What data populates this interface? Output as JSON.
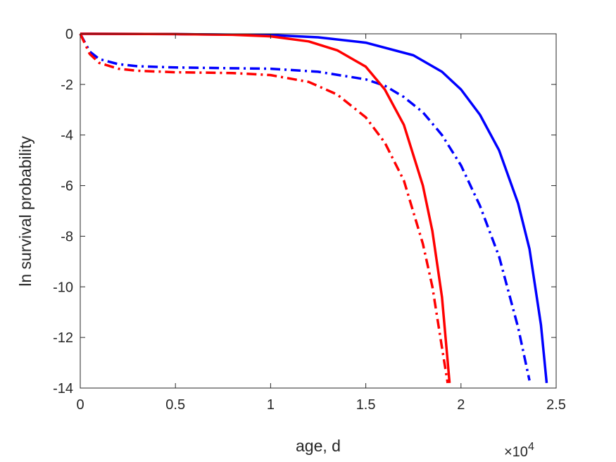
{
  "chart_data": {
    "type": "line",
    "title": "",
    "xlabel": "age, d",
    "ylabel": "ln survival probability",
    "x_exponent_label": {
      "base": "×10",
      "exponent": "4"
    },
    "xlim": [
      0,
      2.5
    ],
    "ylim": [
      -14,
      0
    ],
    "x_scale_factor": 10000,
    "xticks": [
      0,
      0.5,
      1,
      1.5,
      2,
      2.5
    ],
    "xtick_labels": [
      "0",
      "0.5",
      "1",
      "1.5",
      "2",
      "2.5"
    ],
    "yticks": [
      0,
      -2,
      -4,
      -6,
      -8,
      -10,
      -12,
      -14
    ],
    "ytick_labels": [
      "0",
      "-2",
      "-4",
      "-6",
      "-8",
      "-10",
      "-12",
      "-14"
    ],
    "grid": false,
    "legend": false,
    "series": [
      {
        "color": "#0000ff",
        "style": "solid",
        "x": [
          0,
          0.5,
          1.0,
          1.25,
          1.5,
          1.75,
          1.9,
          2.0,
          2.1,
          2.2,
          2.3,
          2.36,
          2.42,
          2.45
        ],
        "y": [
          0,
          -0.01,
          -0.05,
          -0.14,
          -0.35,
          -0.85,
          -1.5,
          -2.2,
          -3.2,
          -4.6,
          -6.7,
          -8.5,
          -11.5,
          -13.8
        ]
      },
      {
        "color": "#0000ff",
        "style": "dashdot",
        "x": [
          0,
          0.05,
          0.1,
          0.2,
          0.3,
          0.5,
          1.0,
          1.25,
          1.5,
          1.6,
          1.7,
          1.8,
          1.9,
          2.0,
          2.1,
          2.2,
          2.3,
          2.36
        ],
        "y": [
          0,
          -0.7,
          -1.0,
          -1.2,
          -1.28,
          -1.33,
          -1.38,
          -1.5,
          -1.8,
          -2.05,
          -2.5,
          -3.1,
          -4.0,
          -5.2,
          -6.8,
          -8.8,
          -11.6,
          -13.7
        ]
      },
      {
        "color": "#ff0000",
        "style": "solid",
        "x": [
          0,
          0.5,
          0.8,
          1.0,
          1.2,
          1.35,
          1.5,
          1.6,
          1.7,
          1.8,
          1.85,
          1.9,
          1.94
        ],
        "y": [
          0,
          -0.01,
          -0.04,
          -0.1,
          -0.3,
          -0.65,
          -1.3,
          -2.2,
          -3.6,
          -6.0,
          -7.8,
          -10.4,
          -13.8
        ]
      },
      {
        "color": "#ff0000",
        "style": "dashdot",
        "x": [
          0,
          0.05,
          0.1,
          0.2,
          0.3,
          0.5,
          0.8,
          1.0,
          1.2,
          1.35,
          1.5,
          1.6,
          1.7,
          1.8,
          1.85,
          1.9,
          1.93
        ],
        "y": [
          0,
          -0.8,
          -1.15,
          -1.38,
          -1.46,
          -1.52,
          -1.55,
          -1.63,
          -1.9,
          -2.4,
          -3.3,
          -4.3,
          -5.8,
          -8.3,
          -10.0,
          -12.4,
          -13.8
        ]
      }
    ]
  }
}
